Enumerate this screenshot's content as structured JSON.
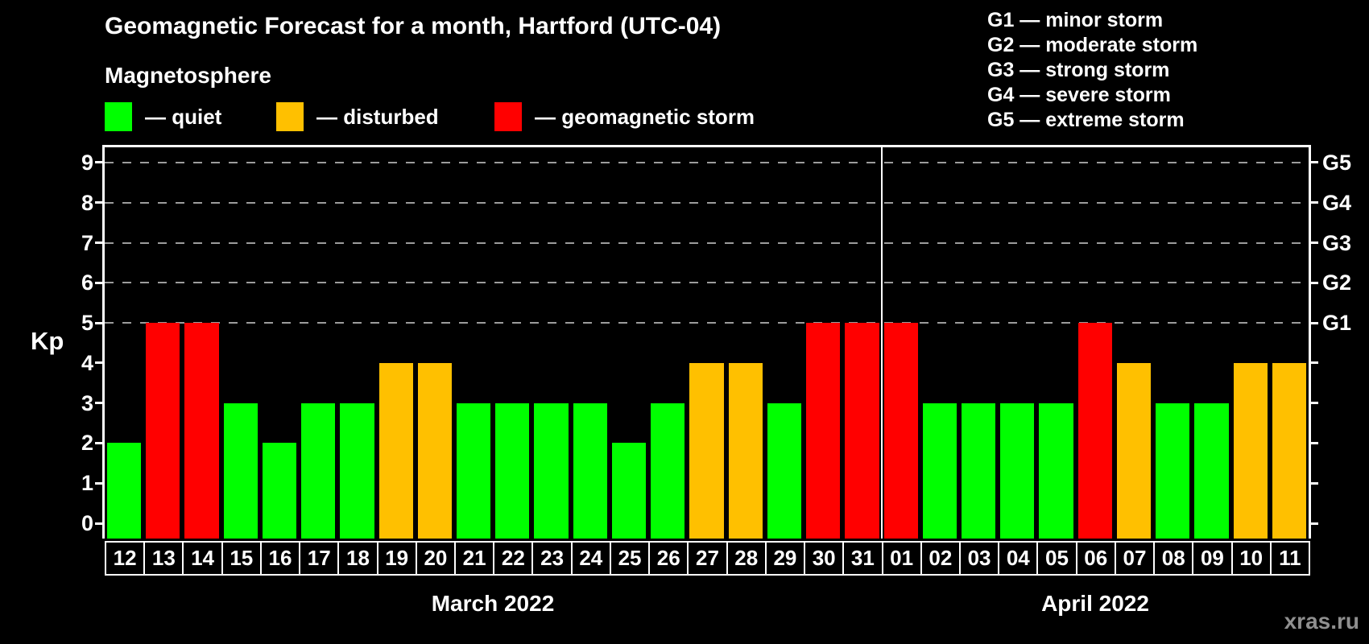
{
  "header": {
    "title": "Geomagnetic Forecast for a month, Hartford (UTC-04)",
    "subtitle": "Magnetosphere"
  },
  "legend": {
    "items": [
      {
        "key": "quiet",
        "label": "— quiet",
        "x": 130
      },
      {
        "key": "disturbed",
        "label": "— disturbed",
        "x": 343
      },
      {
        "key": "storm",
        "label": "— geomagnetic storm",
        "x": 614
      }
    ]
  },
  "storm_scale": [
    "G1 — minor storm",
    "G2 — moderate storm",
    "G3 — strong storm",
    "G4 — severe storm",
    "G5 — extreme storm"
  ],
  "colors": {
    "quiet": "#00ff00",
    "disturbed": "#ffc000",
    "storm": "#ff0000",
    "grid": "#9c9c9c",
    "axis": "#ffffff",
    "background": "#000000",
    "watermark": "#8f8f8f"
  },
  "chart_data": {
    "type": "bar",
    "title": "Geomagnetic Forecast for a month, Hartford (UTC-04)",
    "ylabel": "Kp",
    "ylim": [
      0,
      9.4
    ],
    "y_ticks": [
      0,
      1,
      2,
      3,
      4,
      5,
      6,
      7,
      8,
      9
    ],
    "gridlines_at_kp": [
      5,
      6,
      7,
      8,
      9
    ],
    "grid": "dashed",
    "right_axis": [
      {
        "kp": 5,
        "label": "G1"
      },
      {
        "kp": 6,
        "label": "G2"
      },
      {
        "kp": 7,
        "label": "G3"
      },
      {
        "kp": 8,
        "label": "G4"
      },
      {
        "kp": 9,
        "label": "G5"
      }
    ],
    "months": [
      {
        "label": "March 2022",
        "days": [
          {
            "day": "12",
            "kp": 2,
            "state": "quiet"
          },
          {
            "day": "13",
            "kp": 5,
            "state": "storm"
          },
          {
            "day": "14",
            "kp": 5,
            "state": "storm"
          },
          {
            "day": "15",
            "kp": 3,
            "state": "quiet"
          },
          {
            "day": "16",
            "kp": 2,
            "state": "quiet"
          },
          {
            "day": "17",
            "kp": 3,
            "state": "quiet"
          },
          {
            "day": "18",
            "kp": 3,
            "state": "quiet"
          },
          {
            "day": "19",
            "kp": 4,
            "state": "disturbed"
          },
          {
            "day": "20",
            "kp": 4,
            "state": "disturbed"
          },
          {
            "day": "21",
            "kp": 3,
            "state": "quiet"
          },
          {
            "day": "22",
            "kp": 3,
            "state": "quiet"
          },
          {
            "day": "23",
            "kp": 3,
            "state": "quiet"
          },
          {
            "day": "24",
            "kp": 3,
            "state": "quiet"
          },
          {
            "day": "25",
            "kp": 2,
            "state": "quiet"
          },
          {
            "day": "26",
            "kp": 3,
            "state": "quiet"
          },
          {
            "day": "27",
            "kp": 4,
            "state": "disturbed"
          },
          {
            "day": "28",
            "kp": 4,
            "state": "disturbed"
          },
          {
            "day": "29",
            "kp": 3,
            "state": "quiet"
          },
          {
            "day": "30",
            "kp": 5,
            "state": "storm"
          },
          {
            "day": "31",
            "kp": 5,
            "state": "storm"
          }
        ]
      },
      {
        "label": "April 2022",
        "days": [
          {
            "day": "01",
            "kp": 5,
            "state": "storm"
          },
          {
            "day": "02",
            "kp": 3,
            "state": "quiet"
          },
          {
            "day": "03",
            "kp": 3,
            "state": "quiet"
          },
          {
            "day": "04",
            "kp": 3,
            "state": "quiet"
          },
          {
            "day": "05",
            "kp": 3,
            "state": "quiet"
          },
          {
            "day": "06",
            "kp": 5,
            "state": "storm"
          },
          {
            "day": "07",
            "kp": 4,
            "state": "disturbed"
          },
          {
            "day": "08",
            "kp": 3,
            "state": "quiet"
          },
          {
            "day": "09",
            "kp": 3,
            "state": "quiet"
          },
          {
            "day": "10",
            "kp": 4,
            "state": "disturbed"
          },
          {
            "day": "11",
            "kp": 4,
            "state": "disturbed"
          }
        ]
      }
    ]
  },
  "watermark": "xras.ru"
}
